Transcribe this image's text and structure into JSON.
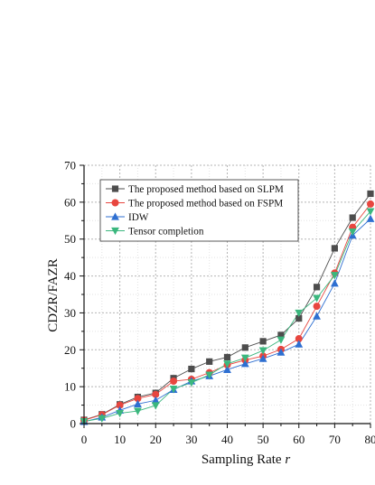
{
  "chart_data": {
    "type": "line",
    "xlabel": "Sampling Rate",
    "xlabel_var": "r",
    "ylabel": "CDZR/FAZR",
    "xlim": [
      0,
      80
    ],
    "ylim": [
      0,
      70
    ],
    "xticks": [
      0,
      10,
      20,
      30,
      40,
      50,
      60,
      70,
      80
    ],
    "yticks": [
      0,
      10,
      20,
      30,
      40,
      50,
      60,
      70
    ],
    "grid": true,
    "legend_position": "top-left",
    "x": [
      0,
      5,
      10,
      15,
      20,
      25,
      30,
      35,
      40,
      45,
      50,
      55,
      60,
      65,
      70,
      75,
      80
    ],
    "series": [
      {
        "name": "The proposed method based on SLPM",
        "marker": "square",
        "color": "#4d4d4d",
        "values": [
          1.0,
          2.5,
          5.2,
          7.2,
          8.3,
          12.3,
          14.8,
          16.8,
          18.0,
          20.6,
          22.3,
          24.0,
          28.5,
          37.0,
          47.5,
          55.8,
          62.3
        ]
      },
      {
        "name": "The proposed method based on FSPM",
        "marker": "circle",
        "color": "#e8463f",
        "values": [
          0.9,
          2.4,
          5.0,
          6.8,
          7.9,
          11.5,
          12.0,
          13.8,
          15.9,
          17.2,
          18.3,
          20.1,
          23.0,
          31.8,
          40.8,
          53.2,
          59.5
        ]
      },
      {
        "name": "IDW",
        "marker": "triangle-up",
        "color": "#2e6fd1",
        "values": [
          0.5,
          1.7,
          3.6,
          5.3,
          6.3,
          9.2,
          11.5,
          12.9,
          14.6,
          16.2,
          17.6,
          19.3,
          21.5,
          29.1,
          38.0,
          51.0,
          55.5
        ]
      },
      {
        "name": "Tensor completion",
        "marker": "triangle-down",
        "color": "#3bb77e",
        "values": [
          0.6,
          1.4,
          2.8,
          3.4,
          4.9,
          9.4,
          11.1,
          13.2,
          16.2,
          17.8,
          19.8,
          22.7,
          30.0,
          34.0,
          40.2,
          52.0,
          57.5
        ]
      }
    ]
  }
}
